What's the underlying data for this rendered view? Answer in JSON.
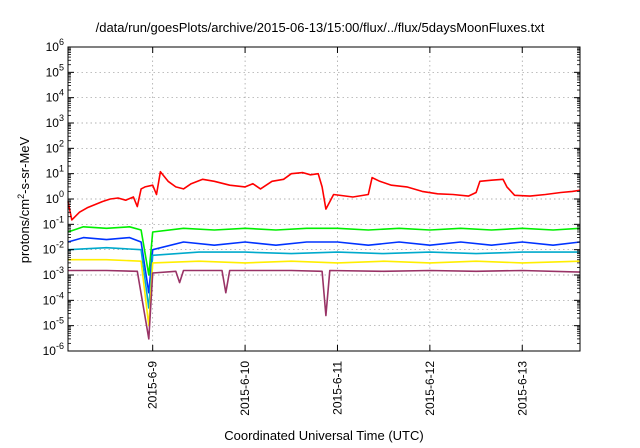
{
  "chart_data": {
    "type": "line",
    "title": "/data/run/goesPlots/archive/2015-06-13/15:00/flux/../flux/5daysMoonFluxes.txt",
    "xlabel": "Coordinated Universal Time (UTC)",
    "ylabel": {
      "pre": "protons/cm",
      "sup": "2",
      "post": "-s-sr-MeV"
    },
    "y_scale": "log",
    "ylim": [
      1e-06,
      1000000.0
    ],
    "y_ticks": [
      {
        "value": 1e-06,
        "base": "10",
        "exp": "-6"
      },
      {
        "value": 1e-05,
        "base": "10",
        "exp": "-5"
      },
      {
        "value": 0.0001,
        "base": "10",
        "exp": "-4"
      },
      {
        "value": 0.001,
        "base": "10",
        "exp": "-3"
      },
      {
        "value": 0.01,
        "base": "10",
        "exp": "-2"
      },
      {
        "value": 0.1,
        "base": "10",
        "exp": "-1"
      },
      {
        "value": 1,
        "base": "10",
        "exp": "0"
      },
      {
        "value": 10,
        "base": "10",
        "exp": "1"
      },
      {
        "value": 100,
        "base": "10",
        "exp": "2"
      },
      {
        "value": 1000,
        "base": "10",
        "exp": "3"
      },
      {
        "value": 10000,
        "base": "10",
        "exp": "4"
      },
      {
        "value": 100000,
        "base": "10",
        "exp": "5"
      },
      {
        "value": 1000000,
        "base": "10",
        "exp": "6"
      }
    ],
    "xlim": [
      "2015-06-08T02:00",
      "2015-06-13T15:00"
    ],
    "x_ticks": [
      "2015-6-9",
      "2015-6-10",
      "2015-6-11",
      "2015-6-12",
      "2015-6-13"
    ],
    "grid": true,
    "legend": "none",
    "series": [
      {
        "color": "#ff0000",
        "points": [
          [
            "2015-06-08T02:00",
            0.8
          ],
          [
            "2015-06-08T03:00",
            0.15
          ],
          [
            "2015-06-08T05:00",
            0.3
          ],
          [
            "2015-06-08T07:00",
            0.45
          ],
          [
            "2015-06-08T09:00",
            0.6
          ],
          [
            "2015-06-08T11:00",
            0.8
          ],
          [
            "2015-06-08T13:00",
            1.0
          ],
          [
            "2015-06-08T15:00",
            1.1
          ],
          [
            "2015-06-08T17:00",
            0.9
          ],
          [
            "2015-06-08T19:00",
            1.2
          ],
          [
            "2015-06-08T20:00",
            0.5
          ],
          [
            "2015-06-08T21:00",
            2.5
          ],
          [
            "2015-06-08T22:00",
            3
          ],
          [
            "2015-06-09T00:00",
            3.5
          ],
          [
            "2015-06-09T01:00",
            1.5
          ],
          [
            "2015-06-09T02:00",
            12
          ],
          [
            "2015-06-09T04:00",
            5
          ],
          [
            "2015-06-09T06:00",
            3
          ],
          [
            "2015-06-09T08:00",
            2.5
          ],
          [
            "2015-06-09T10:00",
            4
          ],
          [
            "2015-06-09T13:00",
            6
          ],
          [
            "2015-06-09T16:00",
            5
          ],
          [
            "2015-06-09T20:00",
            3.5
          ],
          [
            "2015-06-10T00:00",
            3
          ],
          [
            "2015-06-10T02:00",
            4
          ],
          [
            "2015-06-10T04:00",
            2.5
          ],
          [
            "2015-06-10T07:00",
            5
          ],
          [
            "2015-06-10T10:00",
            6
          ],
          [
            "2015-06-10T12:00",
            10
          ],
          [
            "2015-06-10T15:00",
            11
          ],
          [
            "2015-06-10T17:00",
            9
          ],
          [
            "2015-06-10T19:00",
            10
          ],
          [
            "2015-06-10T20:00",
            3
          ],
          [
            "2015-06-10T21:00",
            0.4
          ],
          [
            "2015-06-10T23:00",
            1.5
          ],
          [
            "2015-06-11T04:00",
            1.2
          ],
          [
            "2015-06-11T08:00",
            1.5
          ],
          [
            "2015-06-11T09:00",
            7
          ],
          [
            "2015-06-11T11:00",
            5
          ],
          [
            "2015-06-11T14:00",
            3.5
          ],
          [
            "2015-06-11T18:00",
            3
          ],
          [
            "2015-06-11T22:00",
            2
          ],
          [
            "2015-06-12T02:00",
            1.6
          ],
          [
            "2015-06-12T06:00",
            1.5
          ],
          [
            "2015-06-12T10:00",
            1.3
          ],
          [
            "2015-06-12T12:00",
            1.8
          ],
          [
            "2015-06-12T13:00",
            5
          ],
          [
            "2015-06-12T16:00",
            5.5
          ],
          [
            "2015-06-12T19:00",
            6
          ],
          [
            "2015-06-12T20:00",
            3
          ],
          [
            "2015-06-12T22:00",
            1.4
          ],
          [
            "2015-06-13T02:00",
            1.3
          ],
          [
            "2015-06-13T06:00",
            1.5
          ],
          [
            "2015-06-13T10:00",
            1.8
          ],
          [
            "2015-06-13T13:00",
            2.0
          ],
          [
            "2015-06-13T15:00",
            2.2
          ]
        ]
      },
      {
        "color": "#00ee00",
        "points": [
          [
            "2015-06-08T02:00",
            0.05
          ],
          [
            "2015-06-08T06:00",
            0.08
          ],
          [
            "2015-06-08T12:00",
            0.07
          ],
          [
            "2015-06-08T18:00",
            0.08
          ],
          [
            "2015-06-08T21:00",
            0.06
          ],
          [
            "2015-06-08T23:00",
            0.001
          ],
          [
            "2015-06-09T00:00",
            0.05
          ],
          [
            "2015-06-09T08:00",
            0.07
          ],
          [
            "2015-06-09T16:00",
            0.06
          ],
          [
            "2015-06-10T00:00",
            0.07
          ],
          [
            "2015-06-10T08:00",
            0.06
          ],
          [
            "2015-06-10T16:00",
            0.07
          ],
          [
            "2015-06-11T00:00",
            0.07
          ],
          [
            "2015-06-11T08:00",
            0.06
          ],
          [
            "2015-06-11T16:00",
            0.07
          ],
          [
            "2015-06-12T00:00",
            0.06
          ],
          [
            "2015-06-12T08:00",
            0.07
          ],
          [
            "2015-06-12T16:00",
            0.06
          ],
          [
            "2015-06-13T00:00",
            0.07
          ],
          [
            "2015-06-13T08:00",
            0.06
          ],
          [
            "2015-06-13T15:00",
            0.07
          ]
        ]
      },
      {
        "color": "#0033ff",
        "points": [
          [
            "2015-06-08T02:00",
            0.02
          ],
          [
            "2015-06-08T06:00",
            0.03
          ],
          [
            "2015-06-08T12:00",
            0.025
          ],
          [
            "2015-06-08T18:00",
            0.03
          ],
          [
            "2015-06-08T21:00",
            0.02
          ],
          [
            "2015-06-08T23:00",
            0.0002
          ],
          [
            "2015-06-09T00:00",
            0.01
          ],
          [
            "2015-06-09T08:00",
            0.02
          ],
          [
            "2015-06-09T16:00",
            0.015
          ],
          [
            "2015-06-10T00:00",
            0.02
          ],
          [
            "2015-06-10T08:00",
            0.015
          ],
          [
            "2015-06-10T16:00",
            0.02
          ],
          [
            "2015-06-11T00:00",
            0.02
          ],
          [
            "2015-06-11T08:00",
            0.015
          ],
          [
            "2015-06-11T16:00",
            0.02
          ],
          [
            "2015-06-12T00:00",
            0.015
          ],
          [
            "2015-06-12T08:00",
            0.02
          ],
          [
            "2015-06-12T16:00",
            0.015
          ],
          [
            "2015-06-13T00:00",
            0.02
          ],
          [
            "2015-06-13T08:00",
            0.015
          ],
          [
            "2015-06-13T15:00",
            0.02
          ]
        ]
      },
      {
        "color": "#00aacc",
        "points": [
          [
            "2015-06-08T02:00",
            0.01
          ],
          [
            "2015-06-08T12:00",
            0.012
          ],
          [
            "2015-06-08T21:00",
            0.01
          ],
          [
            "2015-06-08T23:00",
            5e-05
          ],
          [
            "2015-06-09T00:00",
            0.006
          ],
          [
            "2015-06-09T12:00",
            0.008
          ],
          [
            "2015-06-10T00:00",
            0.008
          ],
          [
            "2015-06-10T12:00",
            0.007
          ],
          [
            "2015-06-11T00:00",
            0.008
          ],
          [
            "2015-06-11T12:00",
            0.007
          ],
          [
            "2015-06-12T00:00",
            0.008
          ],
          [
            "2015-06-12T12:00",
            0.007
          ],
          [
            "2015-06-13T00:00",
            0.008
          ],
          [
            "2015-06-13T15:00",
            0.008
          ]
        ]
      },
      {
        "color": "#ffee00",
        "points": [
          [
            "2015-06-08T02:00",
            0.004
          ],
          [
            "2015-06-08T12:00",
            0.004
          ],
          [
            "2015-06-08T21:00",
            0.0035
          ],
          [
            "2015-06-08T23:00",
            1e-05
          ],
          [
            "2015-06-09T00:00",
            0.003
          ],
          [
            "2015-06-09T12:00",
            0.0035
          ],
          [
            "2015-06-10T00:00",
            0.003
          ],
          [
            "2015-06-10T12:00",
            0.0035
          ],
          [
            "2015-06-11T00:00",
            0.003
          ],
          [
            "2015-06-11T12:00",
            0.0035
          ],
          [
            "2015-06-12T00:00",
            0.003
          ],
          [
            "2015-06-12T12:00",
            0.0035
          ],
          [
            "2015-06-13T00:00",
            0.003
          ],
          [
            "2015-06-13T15:00",
            0.0035
          ]
        ]
      },
      {
        "color": "#993366",
        "points": [
          [
            "2015-06-08T02:00",
            0.0015
          ],
          [
            "2015-06-08T12:00",
            0.0015
          ],
          [
            "2015-06-08T20:00",
            0.0014
          ],
          [
            "2015-06-08T23:00",
            3e-06
          ],
          [
            "2015-06-09T00:00",
            0.0012
          ],
          [
            "2015-06-09T06:00",
            0.0014
          ],
          [
            "2015-06-09T07:00",
            0.0005
          ],
          [
            "2015-06-09T08:00",
            0.0015
          ],
          [
            "2015-06-09T18:00",
            0.0015
          ],
          [
            "2015-06-09T19:00",
            0.0002
          ],
          [
            "2015-06-09T20:00",
            0.0015
          ],
          [
            "2015-06-10T12:00",
            0.0015
          ],
          [
            "2015-06-10T20:00",
            0.0014
          ],
          [
            "2015-06-10T21:00",
            2.5e-05
          ],
          [
            "2015-06-10T22:00",
            0.0015
          ],
          [
            "2015-06-11T12:00",
            0.0014
          ],
          [
            "2015-06-12T00:00",
            0.0015
          ],
          [
            "2015-06-12T12:00",
            0.0014
          ],
          [
            "2015-06-13T00:00",
            0.0015
          ],
          [
            "2015-06-13T15:00",
            0.0013
          ]
        ]
      }
    ]
  }
}
